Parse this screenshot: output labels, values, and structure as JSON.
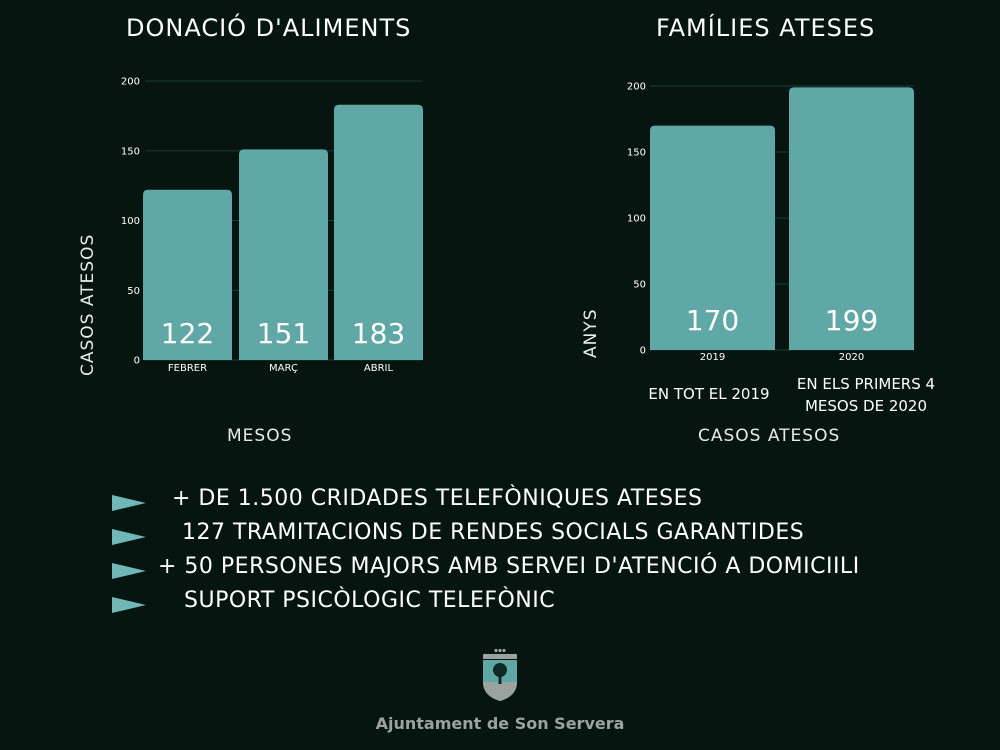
{
  "chart_data": [
    {
      "type": "bar",
      "title": "DONACIÓ D'ALIMENTS",
      "xlabel": "MESOS",
      "ylabel": "CASOS ATESOS",
      "categories": [
        "FEBRER",
        "MARÇ",
        "ABRIL"
      ],
      "values": [
        122,
        151,
        183
      ],
      "ylim": [
        0,
        200
      ],
      "yticks": [
        0,
        50,
        100,
        150,
        200
      ],
      "bar_color": "#5fa8a6",
      "grid": true
    },
    {
      "type": "bar",
      "title": "FAMÍLIES ATESES",
      "xlabel": "CASOS ATESOS",
      "ylabel": "ANYS",
      "categories": [
        "2019",
        "2020"
      ],
      "category_notes": [
        "EN TOT EL 2019",
        "EN ELS PRIMERS 4 MESOS DE 2020"
      ],
      "values": [
        170,
        199
      ],
      "ylim": [
        0,
        200
      ],
      "yticks": [
        0,
        50,
        100,
        150,
        200
      ],
      "bar_color": "#5fa8a6",
      "grid": true
    }
  ],
  "bullets": [
    "+ DE 1.500 CRIDADES TELEFÒNIQUES ATESES",
    "127 TRAMITACIONS DE RENDES SOCIALS GARANTIDES",
    "+ 50 PERSONES MAJORS AMB SERVEI D'ATENCIÓ A DOMICIILI",
    "SUPORT PSICÒLOGIC TELEFÒNIC"
  ],
  "footer": {
    "org_name": "Ajuntament de Son Servera"
  },
  "colors": {
    "background": "#061510",
    "bar": "#5fa8a6",
    "arrow": "#6fb8b6"
  }
}
